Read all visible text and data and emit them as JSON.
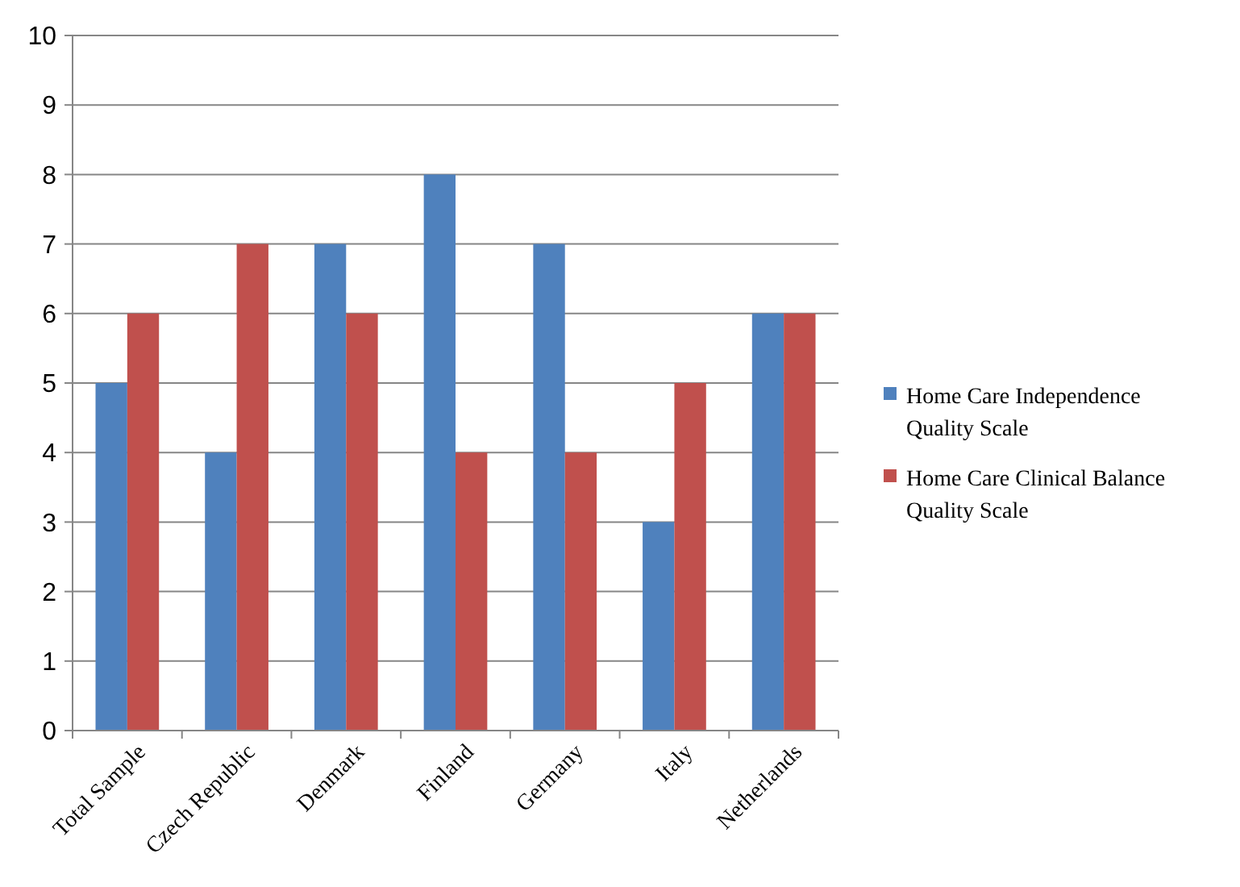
{
  "chart_data": {
    "type": "bar",
    "categories": [
      "Total Sample",
      "Czech Republic",
      "Denmark",
      "Finland",
      "Germany",
      "Italy",
      "Netherlands"
    ],
    "series": [
      {
        "name": "Home Care Independence Quality Scale",
        "color": "#4f81bd",
        "values": [
          5,
          4,
          7,
          8,
          7,
          3,
          6
        ]
      },
      {
        "name": "Home Care Clinical Balance Quality Scale",
        "color": "#c0504d",
        "values": [
          6,
          7,
          6,
          4,
          4,
          5,
          6
        ]
      }
    ],
    "ylim": [
      0,
      10
    ],
    "yticks": [
      0,
      1,
      2,
      3,
      4,
      5,
      6,
      7,
      8,
      9,
      10
    ],
    "grid": "y",
    "legend": "right"
  }
}
